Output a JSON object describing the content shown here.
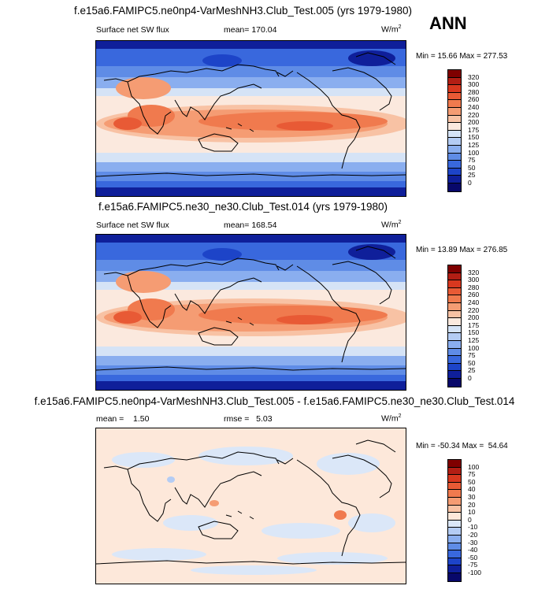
{
  "season": "ANN",
  "panels": [
    {
      "title": "f.e15a6.FAMIPC5.ne0np4-VarMeshNH3.Club_Test.005 (yrs 1979-1980)",
      "left_label": "Surface net SW flux",
      "mid_label": "mean=  170.04",
      "units": "W/m",
      "units_sup": "2",
      "minmax": "Min =  15.66 Max = 277.53",
      "levels": [
        "320",
        "300",
        "280",
        "260",
        "240",
        "220",
        "200",
        "175",
        "150",
        "125",
        "100",
        "75",
        "50",
        "25",
        "0"
      ],
      "colors": [
        "#7f0000",
        "#b21e14",
        "#d8381f",
        "#e85a35",
        "#f07a4e",
        "#f59c73",
        "#f8c2a4",
        "#fbe9de",
        "#d5e3f6",
        "#b4ccf4",
        "#8aaeef",
        "#5f8ce6",
        "#3968dd",
        "#1d44c8",
        "#0f1f9a",
        "#08086a"
      ]
    },
    {
      "title": "f.e15a6.FAMIPC5.ne30_ne30.Club_Test.014 (yrs 1979-1980)",
      "left_label": "Surface net SW flux",
      "mid_label": "mean=  168.54",
      "units": "W/m",
      "units_sup": "2",
      "minmax": "Min =  13.89 Max = 276.85",
      "levels": [
        "320",
        "300",
        "280",
        "260",
        "240",
        "220",
        "200",
        "175",
        "150",
        "125",
        "100",
        "75",
        "50",
        "25",
        "0"
      ],
      "colors": [
        "#7f0000",
        "#b21e14",
        "#d8381f",
        "#e85a35",
        "#f07a4e",
        "#f59c73",
        "#f8c2a4",
        "#fbe9de",
        "#d5e3f6",
        "#b4ccf4",
        "#8aaeef",
        "#5f8ce6",
        "#3968dd",
        "#1d44c8",
        "#0f1f9a",
        "#08086a"
      ]
    },
    {
      "title": "f.e15a6.FAMIPC5.ne0np4-VarMeshNH3.Club_Test.005 - f.e15a6.FAMIPC5.ne30_ne30.Club_Test.014",
      "left_label": "mean =    1.50",
      "mid_label": "rmse =   5.03",
      "units": "W/m",
      "units_sup": "2",
      "minmax": "Min = -50.34 Max =  54.64",
      "levels": [
        "100",
        "75",
        "50",
        "40",
        "30",
        "20",
        "10",
        "0",
        "-10",
        "-20",
        "-30",
        "-40",
        "-50",
        "-75",
        "-100"
      ],
      "colors": [
        "#7f0000",
        "#b21e14",
        "#d8381f",
        "#e85a35",
        "#f07a4e",
        "#f59c73",
        "#f8c2a4",
        "#fde8da",
        "#dbe7f8",
        "#b4ccf4",
        "#8aaeef",
        "#5f8ce6",
        "#3968dd",
        "#1d44c8",
        "#0f1f9a",
        "#08086a"
      ]
    }
  ]
}
